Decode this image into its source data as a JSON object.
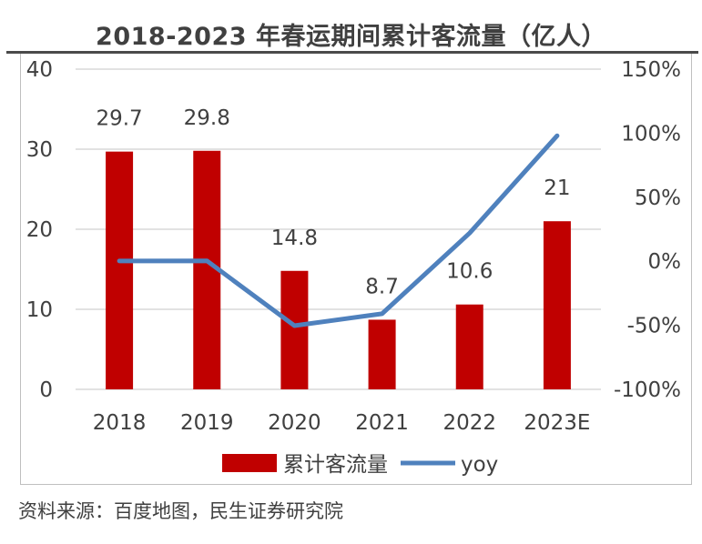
{
  "title": "2018-2023 年春运期间累计客流量（亿人）",
  "source": "资料来源：百度地图，民生证券研究院",
  "colors": {
    "bar": "#c00000",
    "line": "#4f81bd",
    "grid": "#d9d9d9",
    "text": "#404040"
  },
  "chart_data": {
    "type": "bar",
    "title": "2018-2023 年春运期间累计客流量（亿人）",
    "categories": [
      "2018",
      "2019",
      "2020",
      "2021",
      "2022",
      "2023E"
    ],
    "series": [
      {
        "name": "累计客流量",
        "type": "bar",
        "axis": "left",
        "values": [
          29.7,
          29.8,
          14.8,
          8.7,
          10.6,
          21
        ],
        "labels": [
          "29.7",
          "29.8",
          "14.8",
          "8.7",
          "10.6",
          "21"
        ]
      },
      {
        "name": "yoy",
        "type": "line",
        "axis": "right",
        "values": [
          0.002,
          0.003,
          -0.503,
          -0.41,
          0.22,
          0.98
        ]
      }
    ],
    "ylim_left": [
      0,
      40
    ],
    "yticks_left": [
      "0",
      "10",
      "20",
      "30",
      "40"
    ],
    "ylim_right": [
      -1.0,
      1.5
    ],
    "yticks_right": [
      "-100%",
      "-50%",
      "0%",
      "50%",
      "100%",
      "150%"
    ],
    "grid": true,
    "legend": "bottom"
  }
}
